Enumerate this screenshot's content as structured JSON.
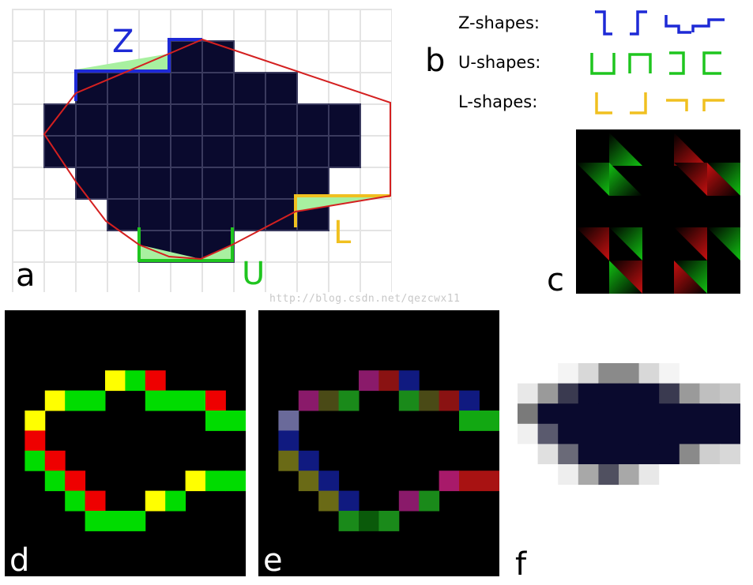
{
  "panels": {
    "a": "a",
    "b": "b",
    "c": "c",
    "d": "d",
    "e": "e",
    "f": "f"
  },
  "annotations": {
    "z": "Z",
    "u": "U",
    "l": "L"
  },
  "legend": {
    "z_label": "Z-shapes:",
    "u_label": "U-shapes:",
    "l_label": "L-shapes:"
  },
  "colors": {
    "z": "#1e2ad6",
    "u": "#1fc51f",
    "l": "#f0c020",
    "contour": "#d42020",
    "fill": "#0a0a2e",
    "area": "#a8f0a0",
    "edge_green": "#00dc00",
    "edge_red": "#ee0000",
    "edge_yellow": "#ffff00"
  },
  "watermark": "http://blog.csdn.net/qezcwx11",
  "shape_grid": [
    "...........",
    ".....##....",
    "..#######..",
    ".##########",
    ".##########",
    "..########.",
    "...#######.",
    "....###....",
    "..........."
  ]
}
